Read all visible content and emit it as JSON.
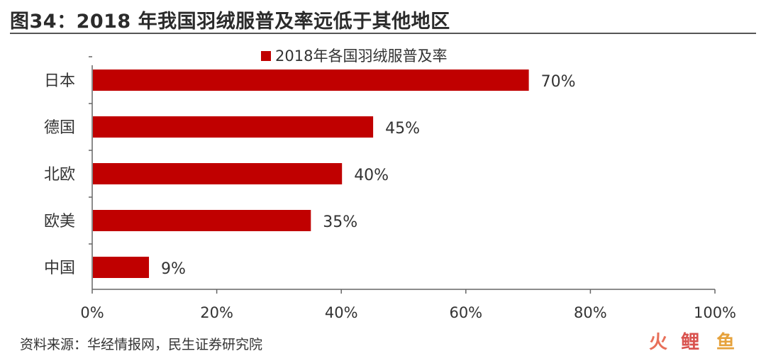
{
  "title": "图34：2018 年我国羽绒服普及率远低于其他地区",
  "source": "资料来源：华经情报网，民生证券研究院",
  "watermark": {
    "char1": "火",
    "char2": "鲤",
    "char3": "鱼"
  },
  "colors": {
    "bar": "#c00000",
    "axis": "#666666",
    "text": "#333333"
  },
  "chart_data": {
    "type": "bar",
    "orientation": "horizontal",
    "categories": [
      "日本",
      "德国",
      "北欧",
      "欧美",
      "中国"
    ],
    "series": [
      {
        "name": "2018年各国羽绒服普及率",
        "values": [
          70,
          45,
          40,
          35,
          9
        ]
      }
    ],
    "value_labels": [
      "70%",
      "45%",
      "40%",
      "35%",
      "9%"
    ],
    "xlim": [
      0,
      100
    ],
    "x_ticks": [
      0,
      20,
      40,
      60,
      80,
      100
    ],
    "x_tick_labels": [
      "0%",
      "20%",
      "40%",
      "60%",
      "80%",
      "100%"
    ],
    "grid": false,
    "legend_position": "top-center"
  }
}
